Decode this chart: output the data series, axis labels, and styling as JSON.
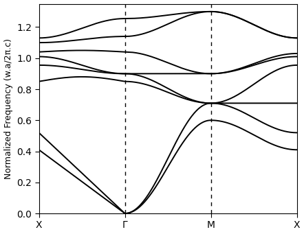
{
  "ylabel": "Normalized Frequency (w.a/2π.c)",
  "xtick_labels": [
    "X",
    "Γ",
    "M",
    "X"
  ],
  "xtick_positions": [
    0,
    1,
    2,
    3
  ],
  "vlines": [
    1,
    2
  ],
  "ylim": [
    0,
    1.35
  ],
  "yticks": [
    0,
    0.2,
    0.4,
    0.6,
    0.8,
    1.0,
    1.2
  ],
  "figsize": [
    4.42,
    3.41
  ],
  "dpi": 100,
  "background_color": "#ffffff",
  "line_color": "#000000",
  "linewidth": 1.4,
  "n_points": 200
}
